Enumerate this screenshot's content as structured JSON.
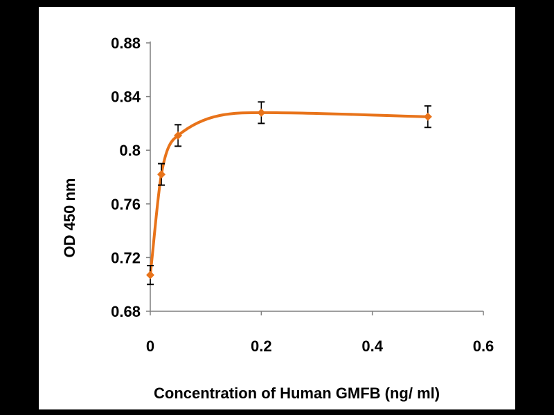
{
  "chart_data": {
    "type": "line",
    "title": "",
    "xlabel": "Concentration of Human GMFB (ng/ ml)",
    "ylabel": "OD 450 nm",
    "xlim": [
      0,
      0.6
    ],
    "ylim": [
      0.68,
      0.88
    ],
    "x_ticks": [
      {
        "value": 0,
        "label": "0"
      },
      {
        "value": 0.2,
        "label": "0.2"
      },
      {
        "value": 0.4,
        "label": "0.4"
      },
      {
        "value": 0.6,
        "label": "0.6"
      }
    ],
    "y_ticks": [
      {
        "value": 0.68,
        "label": "0.68"
      },
      {
        "value": 0.72,
        "label": "0.72"
      },
      {
        "value": 0.76,
        "label": "0.76"
      },
      {
        "value": 0.8,
        "label": "0.8"
      },
      {
        "value": 0.84,
        "label": "0.84"
      },
      {
        "value": 0.88,
        "label": "0.88"
      }
    ],
    "series": [
      {
        "color": "#E8731A",
        "marker": "diamond",
        "smooth": true,
        "points": [
          {
            "x": 0,
            "y": 0.707,
            "err": 0.007
          },
          {
            "x": 0.02,
            "y": 0.782,
            "err": 0.008
          },
          {
            "x": 0.05,
            "y": 0.811,
            "err": 0.008
          },
          {
            "x": 0.2,
            "y": 0.828,
            "err": 0.008
          },
          {
            "x": 0.5,
            "y": 0.825,
            "err": 0.008
          }
        ]
      }
    ],
    "grid": false,
    "legend": "none"
  }
}
